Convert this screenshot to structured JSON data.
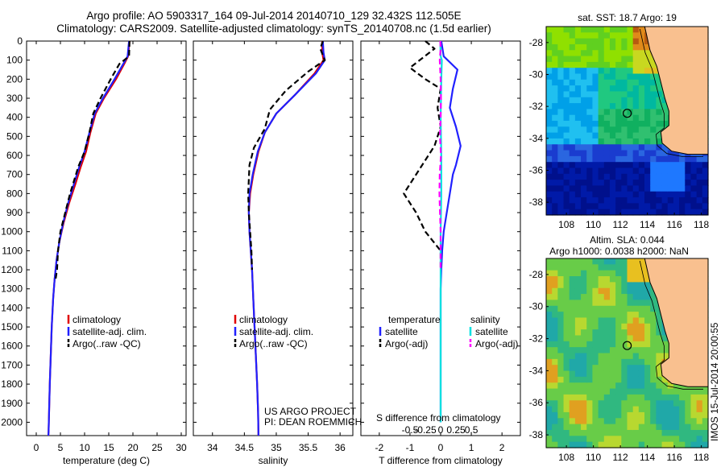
{
  "title": {
    "line1": "Argo profile: AO 5903317_164 09-Jul-2014 20140710_129 32.432S 112.505E",
    "line2": "Climatology: CARS2009. Satellite-adjusted climatology: synTS_20140708.nc (1.5d earlier)"
  },
  "colors": {
    "clim": "#e00000",
    "sat": "#2020ff",
    "argo": "#000000",
    "sat_s": "#00e0e0",
    "argo_s": "#ff00ff",
    "land": "#f9c08f"
  },
  "profile_ylabels": [
    "0",
    "100",
    "200",
    "300",
    "400",
    "500",
    "600",
    "700",
    "800",
    "900",
    "1000",
    "1100",
    "1200",
    "1300",
    "1400",
    "1500",
    "1600",
    "1700",
    "1800",
    "1900",
    "2000"
  ],
  "chart_data": [
    {
      "type": "line",
      "panel": "temperature",
      "xlabel": "temperature (deg C)",
      "xlim": [
        -2,
        31
      ],
      "ylim": [
        2070,
        0
      ],
      "xticks": [
        0,
        5,
        10,
        15,
        20,
        25,
        30
      ],
      "xtick_labels": [
        "0",
        "5",
        "10",
        "15",
        "20",
        "25",
        "30"
      ],
      "legend": [
        "climatology",
        "satellite-adj. clim.",
        "Argo(..raw -QC)"
      ],
      "series": [
        {
          "name": "climatology",
          "color": "#e00000",
          "dash": "solid",
          "x": [
            19.3,
            19.0,
            18.2,
            16.5,
            14.0,
            12.3,
            11.2,
            10.3,
            9.2,
            8.1,
            6.8,
            5.7,
            4.8,
            4.2,
            3.8,
            3.5,
            3.2,
            3.0,
            2.8,
            2.65,
            2.55,
            2.5
          ],
          "y": [
            0,
            80,
            120,
            200,
            300,
            380,
            480,
            580,
            660,
            750,
            850,
            950,
            1050,
            1150,
            1250,
            1350,
            1500,
            1650,
            1800,
            1950,
            2050,
            2070
          ]
        },
        {
          "name": "satellite-adj. clim.",
          "color": "#2020ff",
          "dash": "solid",
          "x": [
            19.2,
            18.9,
            18.0,
            16.2,
            13.8,
            12.1,
            11.0,
            10.0,
            8.9,
            7.8,
            6.6,
            5.6,
            4.8,
            4.2,
            3.8,
            3.5,
            3.2,
            3.0,
            2.8,
            2.65,
            2.55,
            2.5
          ],
          "y": [
            0,
            80,
            120,
            200,
            300,
            380,
            480,
            580,
            660,
            750,
            850,
            950,
            1050,
            1150,
            1250,
            1350,
            1500,
            1650,
            1800,
            1950,
            2050,
            2070
          ]
        },
        {
          "name": "Argo(..raw -QC)",
          "color": "#000000",
          "dash": "dashed",
          "x": [
            19.3,
            19.2,
            17.2,
            15.4,
            13.3,
            11.8,
            11.0,
            10.0,
            8.7,
            7.0,
            6.0,
            5.0,
            4.5,
            4.3,
            4.0
          ],
          "y": [
            0,
            80,
            120,
            200,
            300,
            380,
            480,
            580,
            660,
            800,
            900,
            1000,
            1100,
            1200,
            1250
          ]
        }
      ]
    },
    {
      "type": "line",
      "panel": "salinity",
      "xlabel": "salinity",
      "xlim": [
        33.7,
        36.2
      ],
      "ylim": [
        2070,
        0
      ],
      "xticks": [
        34,
        34.5,
        35,
        35.5,
        36
      ],
      "xtick_labels": [
        "34",
        "34.5",
        "35",
        "35.5",
        "36"
      ],
      "legend": [
        "climatology",
        "satellite-adj. clim.",
        "Argo(..raw -QC)"
      ],
      "annotation": [
        "US ARGO PROJECT",
        "PI: DEAN ROEMMICH"
      ],
      "series": [
        {
          "name": "climatology",
          "color": "#e00000",
          "dash": "solid",
          "x": [
            35.72,
            35.72,
            35.74,
            35.6,
            35.3,
            35.0,
            34.82,
            34.72,
            34.64,
            34.59,
            34.57,
            34.58,
            34.6,
            34.62,
            34.64,
            34.66,
            34.68,
            34.7,
            34.715,
            34.72,
            34.72
          ],
          "y": [
            0,
            60,
            100,
            170,
            280,
            380,
            480,
            580,
            700,
            800,
            900,
            1000,
            1100,
            1200,
            1350,
            1500,
            1650,
            1800,
            1950,
            2050,
            2070
          ]
        },
        {
          "name": "satellite-adj. clim.",
          "color": "#2020ff",
          "dash": "solid",
          "x": [
            35.73,
            35.74,
            35.76,
            35.62,
            35.3,
            35.0,
            34.82,
            34.71,
            34.63,
            34.58,
            34.57,
            34.58,
            34.6,
            34.62,
            34.64,
            34.66,
            34.68,
            34.7,
            34.715,
            34.72,
            34.72
          ],
          "y": [
            0,
            60,
            100,
            170,
            280,
            380,
            480,
            580,
            700,
            800,
            900,
            1000,
            1100,
            1200,
            1350,
            1500,
            1650,
            1800,
            1950,
            2050,
            2070
          ]
        },
        {
          "name": "Argo(..raw -QC)",
          "color": "#000000",
          "dash": "dashed",
          "x": [
            35.73,
            35.69,
            35.76,
            35.5,
            35.15,
            34.9,
            34.82,
            34.65,
            34.58,
            34.56,
            34.57,
            34.59,
            34.61,
            34.62
          ],
          "y": [
            0,
            40,
            100,
            160,
            260,
            360,
            460,
            560,
            650,
            800,
            900,
            1000,
            1100,
            1200
          ]
        }
      ]
    },
    {
      "type": "line",
      "panel": "difference",
      "xlabel": "T difference from climatology",
      "xlabel2": "S difference from climatology",
      "xlim": [
        -2.6,
        2.6
      ],
      "ylim": [
        2070,
        0
      ],
      "xticks": [
        -2,
        -1,
        0,
        1,
        2
      ],
      "xtick_labels": [
        "-2",
        "-1",
        "0",
        "1",
        "2"
      ],
      "s_ticks": [
        -0.5,
        -0.25,
        0,
        0.25,
        0.5
      ],
      "s_tick_labels": [
        "-0.5",
        "-0.25",
        "0",
        "0.25",
        "0.5"
      ],
      "legend_headers": [
        "temperature",
        "salinity"
      ],
      "legend": [
        "satellite",
        "Argo(-adj)",
        "satellite",
        "Argo(-adj)"
      ],
      "series": [
        {
          "name": "satellite",
          "color": "#2020ff",
          "dash": "solid",
          "x": [
            0.02,
            0.1,
            0.55,
            0.4,
            0.3,
            0.5,
            0.65,
            0.5,
            0.4,
            0.3,
            0.2,
            0.1,
            0.05,
            0.02,
            0.0,
            0.0
          ],
          "y": [
            0,
            80,
            150,
            250,
            350,
            450,
            550,
            650,
            700,
            800,
            900,
            1000,
            1100,
            1200,
            1300,
            2000
          ]
        },
        {
          "name": "Argo(-adj)",
          "color": "#000000",
          "dash": "dashed",
          "x": [
            -0.5,
            -0.2,
            -1.0,
            -0.5,
            0.0,
            -0.1,
            0.0,
            -0.2,
            -1.2,
            -0.8,
            -0.5,
            0.0,
            0.0
          ],
          "y": [
            0,
            40,
            140,
            200,
            250,
            350,
            450,
            550,
            800,
            900,
            1000,
            1100,
            1200
          ]
        },
        {
          "name": "satellite",
          "color": "#00e0e0",
          "dash": "solid",
          "x": [
            -0.01,
            0.0,
            0.04,
            0.02,
            0.0,
            0.02,
            0.02,
            0.0,
            0.0,
            0.0
          ],
          "y": [
            0,
            80,
            100,
            200,
            400,
            600,
            800,
            1000,
            1200,
            2000
          ]
        },
        {
          "name": "Argo(-adj)",
          "color": "#ff00ff",
          "dash": "dashed",
          "x": [
            -0.01,
            0.0,
            -0.03,
            0.0,
            0.01,
            0.0,
            -0.02,
            0.01,
            -0.03,
            -0.04,
            -0.02,
            0.0,
            0.0
          ],
          "y": [
            0,
            40,
            100,
            200,
            300,
            400,
            500,
            600,
            700,
            800,
            900,
            1000,
            1200
          ]
        }
      ]
    }
  ],
  "maps": {
    "sst": {
      "title": "sat. SST: 18.7 Argo: 19",
      "yticks": [
        "-28",
        "-30",
        "-32",
        "-34",
        "-36",
        "-38"
      ],
      "xticks": [
        "108",
        "110",
        "112",
        "114",
        "116",
        "118"
      ],
      "float_lon": 112.505,
      "float_lat": -32.432
    },
    "sla": {
      "title": "Altim. SLA: 0.044",
      "subtitle": "Argo h1000: 0.0038 h2000: NaN",
      "yticks": [
        "-28",
        "-30",
        "-32",
        "-34",
        "-36",
        "-38"
      ],
      "xticks": [
        "108",
        "110",
        "112",
        "114",
        "116",
        "118"
      ],
      "float_lon": 112.505,
      "float_lat": -32.432
    }
  },
  "side_label": "IMOS 15-Jul-2014 20:00:55"
}
